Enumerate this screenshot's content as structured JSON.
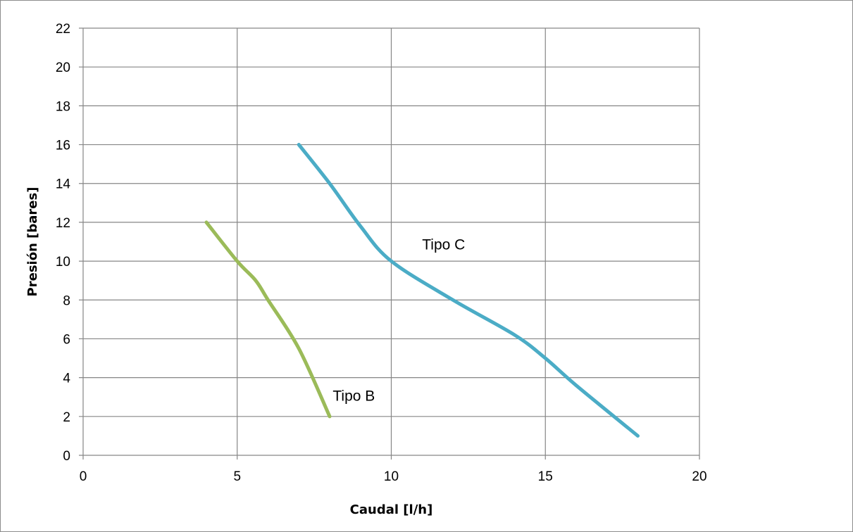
{
  "chart_data": {
    "type": "line",
    "title": "",
    "xlabel": "Caudal [l/h]",
    "ylabel": "Presión [bares]",
    "xlim": [
      0,
      20
    ],
    "ylim": [
      0,
      22
    ],
    "x_ticks": [
      0,
      5,
      10,
      15,
      20
    ],
    "y_ticks": [
      0,
      2,
      4,
      6,
      8,
      10,
      12,
      14,
      16,
      18,
      20,
      22
    ],
    "grid": true,
    "legend": "none",
    "series": [
      {
        "name": "Tipo B",
        "color": "#9BBB59",
        "points": [
          [
            4,
            12
          ],
          [
            5,
            10
          ],
          [
            5.6,
            9
          ],
          [
            6,
            8
          ],
          [
            7,
            5.5
          ],
          [
            8,
            2
          ]
        ],
        "label_at": [
          8.1,
          2.8
        ]
      },
      {
        "name": "Tipo C",
        "color": "#4BACC6",
        "points": [
          [
            7,
            16
          ],
          [
            8,
            14
          ],
          [
            9,
            11.8
          ],
          [
            10,
            10
          ],
          [
            12,
            8
          ],
          [
            14,
            6.2
          ],
          [
            15,
            5
          ],
          [
            16,
            3.6
          ],
          [
            18,
            1
          ]
        ],
        "label_at": [
          11,
          10.6
        ]
      }
    ]
  }
}
